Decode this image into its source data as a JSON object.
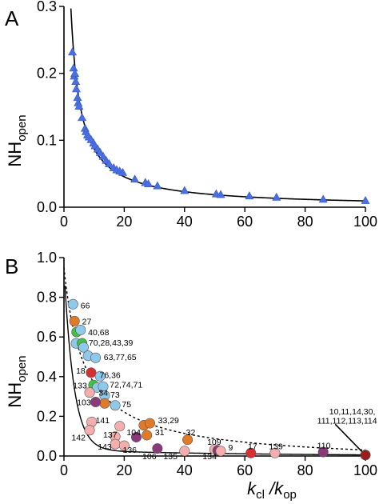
{
  "chart_data": [
    {
      "panel": "A",
      "type": "scatter",
      "ylabel": "NH",
      "ylabel_sub": "open",
      "xlim": [
        0,
        100
      ],
      "ylim": [
        0,
        0.3
      ],
      "xticks": [
        "0",
        "20",
        "40",
        "60",
        "80",
        "100"
      ],
      "yticks": [
        "0.0",
        "0.1",
        "0.2",
        "0.3"
      ],
      "marker": "triangle",
      "marker_color": "#4a6fe0",
      "fit_curve": "solid",
      "points": [
        [
          2.8,
          0.232
        ],
        [
          3.2,
          0.208
        ],
        [
          3.4,
          0.196
        ],
        [
          3.6,
          0.2
        ],
        [
          3.9,
          0.188
        ],
        [
          4.1,
          0.177
        ],
        [
          4.5,
          0.164
        ],
        [
          4.7,
          0.156
        ],
        [
          5.0,
          0.151
        ],
        [
          6.0,
          0.134
        ],
        [
          7.0,
          0.118
        ],
        [
          7.3,
          0.113
        ],
        [
          7.8,
          0.108
        ],
        [
          8.3,
          0.105
        ],
        [
          9.0,
          0.101
        ],
        [
          9.8,
          0.096
        ],
        [
          10.3,
          0.092
        ],
        [
          11.2,
          0.087
        ],
        [
          12.0,
          0.082
        ],
        [
          13.0,
          0.076
        ],
        [
          14.0,
          0.07
        ],
        [
          15.0,
          0.065
        ],
        [
          16.5,
          0.059
        ],
        [
          17.5,
          0.056
        ],
        [
          18.5,
          0.054
        ],
        [
          19.5,
          0.052
        ],
        [
          23.5,
          0.042
        ],
        [
          27.0,
          0.037
        ],
        [
          28.0,
          0.035
        ],
        [
          31.0,
          0.032
        ],
        [
          40.0,
          0.025
        ],
        [
          50.5,
          0.02
        ],
        [
          52.0,
          0.019
        ],
        [
          61.5,
          0.017
        ],
        [
          70.5,
          0.015
        ],
        [
          86.0,
          0.012
        ],
        [
          100.0,
          0.01
        ]
      ]
    },
    {
      "panel": "B",
      "type": "scatter",
      "ylabel": "NH",
      "ylabel_sub": "open",
      "xlabel_main": "k",
      "xlabel_sub1": "cl",
      "xlabel_slash": " /k",
      "xlabel_sub2": "op",
      "xlim": [
        0,
        100
      ],
      "ylim": [
        0,
        1.0
      ],
      "xticks": [
        "0",
        "20",
        "40",
        "60",
        "80",
        "100"
      ],
      "yticks": [
        "0.0",
        "0.2",
        "0.4",
        "0.6",
        "0.8",
        "1.0"
      ],
      "fit_curves": [
        "solid",
        "dashed"
      ],
      "colors": {
        "light_blue": "#8ec8ea",
        "orange": "#e07a28",
        "red": "#d83030",
        "pink": "#f4aeae",
        "purple": "#8a3a7a",
        "green": "#3ec43e",
        "dark_red": "#9a1e1e"
      },
      "points": [
        {
          "x": 3.0,
          "y": 0.765,
          "color": "light_blue"
        },
        {
          "x": 3.5,
          "y": 0.68,
          "color": "orange"
        },
        {
          "x": 4.2,
          "y": 0.625,
          "color": "green"
        },
        {
          "x": 5.5,
          "y": 0.635,
          "color": "light_blue"
        },
        {
          "x": 4.0,
          "y": 0.568,
          "color": "light_blue"
        },
        {
          "x": 6.0,
          "y": 0.568,
          "color": "green"
        },
        {
          "x": 6.5,
          "y": 0.548,
          "color": "light_blue"
        },
        {
          "x": 8.0,
          "y": 0.505,
          "color": "light_blue"
        },
        {
          "x": 10.5,
          "y": 0.495,
          "color": "light_blue"
        },
        {
          "x": 9.0,
          "y": 0.42,
          "color": "red"
        },
        {
          "x": 12.0,
          "y": 0.402,
          "color": "light_blue"
        },
        {
          "x": 9.8,
          "y": 0.358,
          "color": "green"
        },
        {
          "x": 11.0,
          "y": 0.345,
          "color": "light_blue"
        },
        {
          "x": 13.0,
          "y": 0.35,
          "color": "light_blue"
        },
        {
          "x": 8.5,
          "y": 0.32,
          "color": "pink"
        },
        {
          "x": 13.5,
          "y": 0.305,
          "color": "light_blue"
        },
        {
          "x": 13.5,
          "y": 0.265,
          "color": "orange"
        },
        {
          "x": 17.0,
          "y": 0.255,
          "color": "light_blue"
        },
        {
          "x": 10.5,
          "y": 0.272,
          "color": "purple"
        },
        {
          "x": 9.2,
          "y": 0.172,
          "color": "pink"
        },
        {
          "x": 8.5,
          "y": 0.13,
          "color": "pink"
        },
        {
          "x": 18.5,
          "y": 0.15,
          "color": "pink"
        },
        {
          "x": 26.5,
          "y": 0.155,
          "color": "orange"
        },
        {
          "x": 28.5,
          "y": 0.165,
          "color": "orange"
        },
        {
          "x": 27.5,
          "y": 0.105,
          "color": "orange"
        },
        {
          "x": 24.0,
          "y": 0.095,
          "color": "purple"
        },
        {
          "x": 41.0,
          "y": 0.082,
          "color": "orange"
        },
        {
          "x": 17.0,
          "y": 0.098,
          "color": "pink"
        },
        {
          "x": 17.0,
          "y": 0.06,
          "color": "pink"
        },
        {
          "x": 20.0,
          "y": 0.052,
          "color": "pink"
        },
        {
          "x": 31.0,
          "y": 0.038,
          "color": "purple"
        },
        {
          "x": 40.0,
          "y": 0.025,
          "color": "pink"
        },
        {
          "x": 50.0,
          "y": 0.033,
          "color": "pink"
        },
        {
          "x": 51.0,
          "y": 0.028,
          "color": "purple"
        },
        {
          "x": 52.0,
          "y": 0.025,
          "color": "pink"
        },
        {
          "x": 62.0,
          "y": 0.015,
          "color": "red"
        },
        {
          "x": 70.0,
          "y": 0.015,
          "color": "pink"
        },
        {
          "x": 86.0,
          "y": 0.02,
          "color": "purple"
        },
        {
          "x": 100.0,
          "y": 0.005,
          "color": "dark_red"
        }
      ],
      "labels": [
        {
          "text": "66",
          "x": 5.5,
          "y": 0.76
        },
        {
          "text": "27",
          "x": 6.0,
          "y": 0.68
        },
        {
          "text": "40,68",
          "x": 8.0,
          "y": 0.625
        },
        {
          "text": "70,28,43,39",
          "x": 8.2,
          "y": 0.572
        },
        {
          "text": "63,77,65",
          "x": 13.2,
          "y": 0.5
        },
        {
          "text": "18",
          "x": 4.0,
          "y": 0.432
        },
        {
          "text": "76,36",
          "x": 11.8,
          "y": 0.41
        },
        {
          "text": "72,74,71",
          "x": 15.2,
          "y": 0.36
        },
        {
          "text": "73",
          "x": 15.4,
          "y": 0.31
        },
        {
          "text": "75",
          "x": 19.2,
          "y": 0.262
        },
        {
          "text": "133",
          "x": 3.0,
          "y": 0.357
        },
        {
          "text": "34",
          "x": 11.5,
          "y": 0.32
        },
        {
          "text": "103",
          "x": 4.3,
          "y": 0.272
        },
        {
          "text": "141",
          "x": 10.5,
          "y": 0.182
        },
        {
          "text": "142",
          "x": 2.5,
          "y": 0.095
        },
        {
          "text": "104",
          "x": 20.8,
          "y": 0.12
        },
        {
          "text": "33,29",
          "x": 31.2,
          "y": 0.182
        },
        {
          "text": "31",
          "x": 30.2,
          "y": 0.12
        },
        {
          "text": "32",
          "x": 40.5,
          "y": 0.12
        },
        {
          "text": "137",
          "x": 13.0,
          "y": 0.108
        },
        {
          "text": "143",
          "x": 11.2,
          "y": 0.048
        },
        {
          "text": "136",
          "x": 19.5,
          "y": 0.032
        },
        {
          "text": "106",
          "x": 26.0,
          "y": 0.0
        },
        {
          "text": "135",
          "x": 33.0,
          "y": 0.0
        },
        {
          "text": "134",
          "x": 46.0,
          "y": 0.0
        },
        {
          "text": "109",
          "x": 47.5,
          "y": 0.072
        },
        {
          "text": "9",
          "x": 54.5,
          "y": 0.045
        },
        {
          "text": "17",
          "x": 61.0,
          "y": 0.05
        },
        {
          "text": "139",
          "x": 68.0,
          "y": 0.05
        },
        {
          "text": "110",
          "x": 84.0,
          "y": 0.055
        },
        {
          "text": "10,11,14,30,",
          "x": 88.0,
          "y": 0.225
        },
        {
          "text": "111,112,113,114",
          "x": 84.0,
          "y": 0.18
        }
      ]
    }
  ]
}
